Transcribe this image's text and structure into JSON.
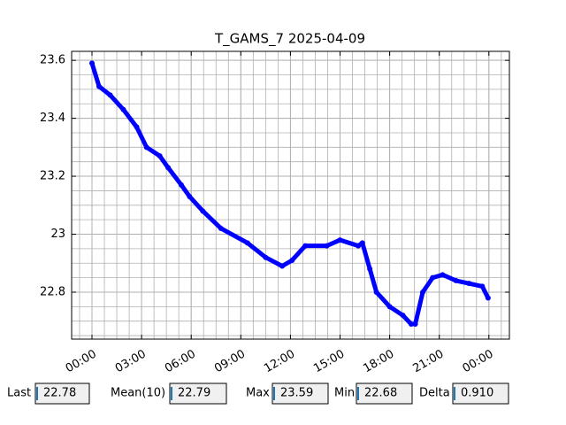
{
  "chart_data": {
    "type": "line",
    "title": "T_GAMS_7 2025-04-09",
    "x": [
      0,
      0.43,
      1.1,
      1.9,
      2.7,
      3.3,
      4.1,
      4.6,
      5.4,
      5.9,
      6.7,
      7.8,
      9.4,
      10.5,
      11.5,
      12.1,
      12.9,
      14.2,
      15.0,
      16.1,
      16.35,
      16.8,
      17.2,
      18.0,
      18.8,
      19.3,
      19.55,
      20.0,
      20.6,
      21.2,
      22.0,
      22.8,
      23.6,
      23.95
    ],
    "series": [
      {
        "name": "T_GAMS_7",
        "color": "#0000ff",
        "values": [
          23.59,
          23.51,
          23.48,
          23.43,
          23.37,
          23.3,
          23.27,
          23.23,
          23.17,
          23.13,
          23.08,
          23.02,
          22.97,
          22.92,
          22.89,
          22.91,
          22.96,
          22.96,
          22.98,
          22.96,
          22.97,
          22.88,
          22.8,
          22.75,
          22.72,
          22.69,
          22.69,
          22.8,
          22.85,
          22.86,
          22.84,
          22.83,
          22.82,
          22.78
        ]
      }
    ],
    "xlim": [
      -1.23,
      25.24
    ],
    "xticks": [
      {
        "value": 0,
        "label": "00:00"
      },
      {
        "value": 3,
        "label": "03:00"
      },
      {
        "value": 6,
        "label": "06:00"
      },
      {
        "value": 9,
        "label": "09:00"
      },
      {
        "value": 12,
        "label": "12:00"
      },
      {
        "value": 15,
        "label": "15:00"
      },
      {
        "value": 18,
        "label": "18:00"
      },
      {
        "value": 21,
        "label": "21:00"
      },
      {
        "value": 24,
        "label": "00:00"
      }
    ],
    "ylim": [
      22.638,
      23.631
    ],
    "yticks": [
      22.8,
      23.0,
      23.2,
      23.4,
      23.6
    ],
    "grid": true,
    "minor_divisions": 4
  },
  "stats": [
    {
      "label": "Last",
      "value": "22.78"
    },
    {
      "label": "Mean(10)",
      "value": "22.79"
    },
    {
      "label": "Max",
      "value": "23.59"
    },
    {
      "label": "Min",
      "value": "22.68"
    },
    {
      "label": "Delta",
      "value": "0.910"
    }
  ]
}
